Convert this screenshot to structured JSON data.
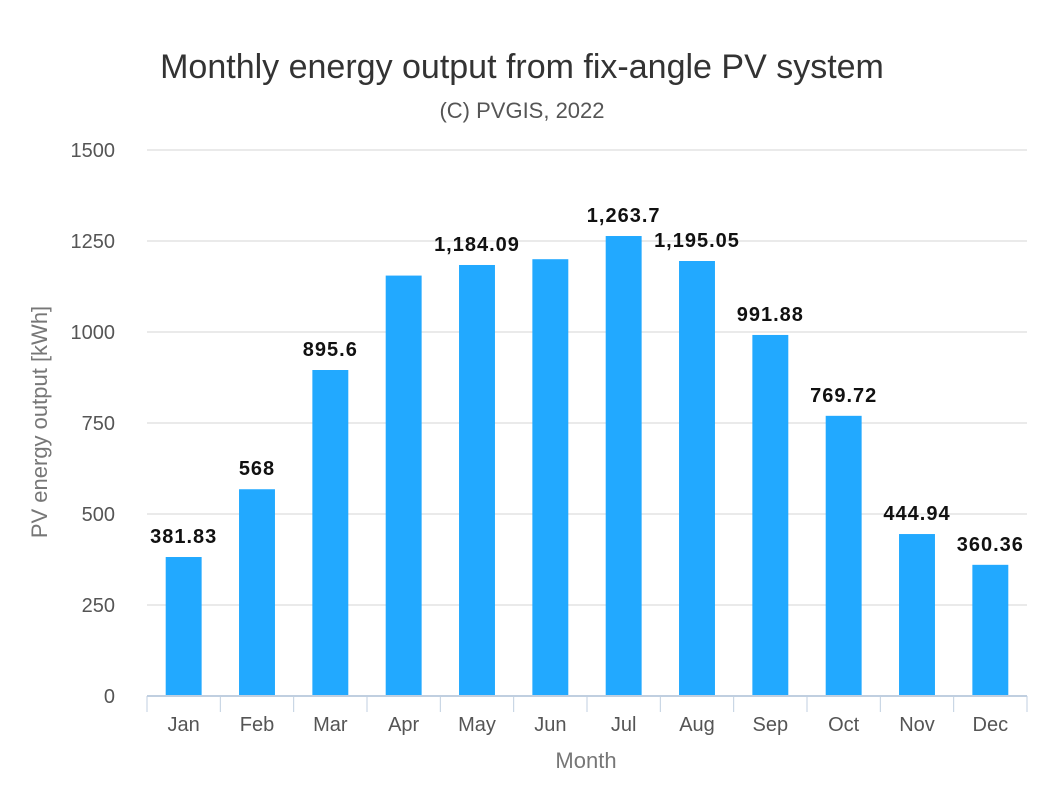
{
  "chart_data": {
    "type": "bar",
    "title": "Monthly energy output from fix-angle PV system",
    "subtitle": "(C) PVGIS, 2022",
    "xlabel": "Month",
    "ylabel": "PV energy output [kWh]",
    "categories": [
      "Jan",
      "Feb",
      "Mar",
      "Apr",
      "May",
      "Jun",
      "Jul",
      "Aug",
      "Sep",
      "Oct",
      "Nov",
      "Dec"
    ],
    "values": [
      381.83,
      568,
      895.6,
      1155,
      1184.09,
      1200,
      1263.7,
      1195.05,
      991.88,
      769.72,
      444.94,
      360.36
    ],
    "data_labels": [
      "381.83",
      "568",
      "895.6",
      "",
      "1,184.09",
      "",
      "1,263.7",
      "1,195.05",
      "991.88",
      "769.72",
      "444.94",
      "360.36"
    ],
    "ylim": [
      0,
      1500
    ],
    "yticks": [
      0,
      250,
      500,
      750,
      1000,
      1250,
      1500
    ],
    "grid": true,
    "legend": "none",
    "bar_color": "#22a9ff"
  }
}
